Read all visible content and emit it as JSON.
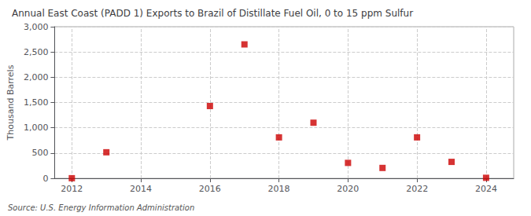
{
  "chart_data": {
    "type": "scatter",
    "title": "Annual East Coast (PADD 1) Exports to Brazil of Distillate Fuel Oil, 0 to 15 ppm Sulfur",
    "ylabel": "Thousand Barrels",
    "source": "Source: U.S. Energy Information Administration",
    "x": [
      2012,
      2013,
      2016,
      2017,
      2018,
      2019,
      2020,
      2021,
      2022,
      2023,
      2024
    ],
    "values": [
      2,
      515,
      1430,
      2650,
      810,
      1100,
      305,
      205,
      810,
      325,
      10
    ],
    "color": "#cc0000",
    "marker": "square",
    "xlim": [
      2011.5,
      2024.8
    ],
    "xticks": [
      2012,
      2014,
      2016,
      2018,
      2020,
      2022,
      2024
    ],
    "ylim": [
      0,
      3000
    ],
    "yticks": [
      0,
      500,
      {
        "value": 1000,
        "label": "1,000"
      },
      {
        "value": 1500,
        "label": "1,500"
      },
      {
        "value": 2000,
        "label": "2,000"
      },
      {
        "value": 2500,
        "label": "2,500"
      },
      {
        "value": 3000,
        "label": "3,000"
      }
    ],
    "grid": true
  }
}
